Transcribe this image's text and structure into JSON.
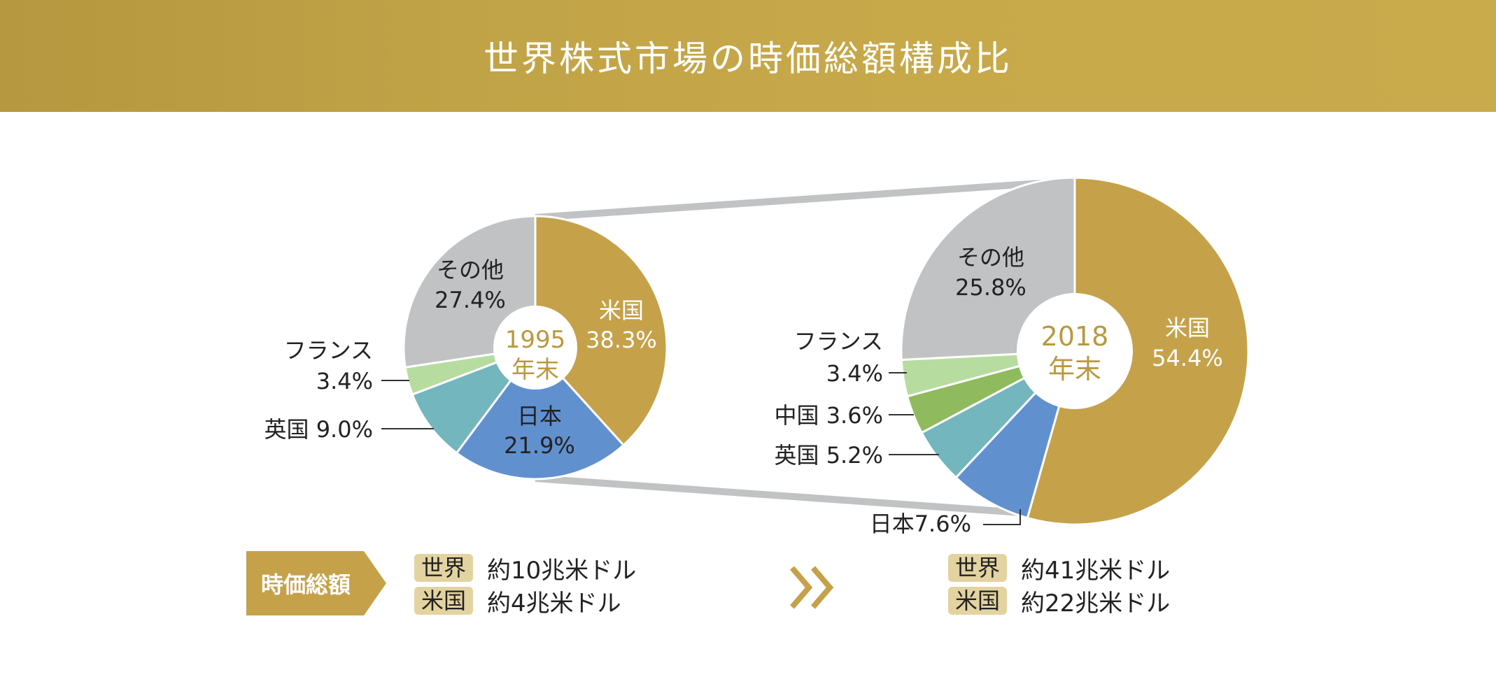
{
  "title": "世界株式市場の時価総額構成比",
  "chart_data": [
    {
      "type": "pie",
      "center_label": [
        "1995",
        "年末"
      ],
      "slices": [
        {
          "name": "米国",
          "value": 38.3,
          "color": "#c5a14a"
        },
        {
          "name": "日本",
          "value": 21.9,
          "color": "#6190cf"
        },
        {
          "name": "英国",
          "value": 9.0,
          "color": "#73b6be"
        },
        {
          "name": "フランス",
          "value": 3.4,
          "color": "#b7dca0"
        },
        {
          "name": "その他",
          "value": 27.4,
          "color": "#c1c2c3"
        }
      ],
      "labels": {
        "us": [
          "米国",
          "38.3%"
        ],
        "jp": [
          "日本",
          "21.9%"
        ],
        "uk": "英国 9.0%",
        "fr": [
          "フランス",
          "3.4%"
        ],
        "other": [
          "その他",
          "27.4%"
        ]
      }
    },
    {
      "type": "pie",
      "center_label": [
        "2018",
        "年末"
      ],
      "slices": [
        {
          "name": "米国",
          "value": 54.4,
          "color": "#c5a14a"
        },
        {
          "name": "日本",
          "value": 7.6,
          "color": "#6190cf"
        },
        {
          "name": "英国",
          "value": 5.2,
          "color": "#73b6be"
        },
        {
          "name": "中国",
          "value": 3.6,
          "color": "#8fba5e"
        },
        {
          "name": "フランス",
          "value": 3.4,
          "color": "#b7dca0"
        },
        {
          "name": "その他",
          "value": 25.8,
          "color": "#c1c2c3"
        }
      ],
      "labels": {
        "us": [
          "米国",
          "54.4%"
        ],
        "jp": "日本7.6%",
        "uk": "英国 5.2%",
        "cn": "中国 3.6%",
        "fr": [
          "フランス",
          "3.4%"
        ],
        "other": [
          "その他",
          "25.8%"
        ]
      }
    }
  ],
  "market_cap": {
    "label": "時価総額",
    "y1995": {
      "world_badge": "世界",
      "world_value": "約10兆米ドル",
      "us_badge": "米国",
      "us_value": "約4兆米ドル"
    },
    "y2018": {
      "world_badge": "世界",
      "world_value": "約41兆米ドル",
      "us_badge": "米国",
      "us_value": "約22兆米ドル"
    }
  },
  "colors": {
    "gold": "#c5a14a",
    "header_gold": "#c2a448",
    "label_gold": "#b9993f",
    "badge": "#e3d3a1"
  }
}
